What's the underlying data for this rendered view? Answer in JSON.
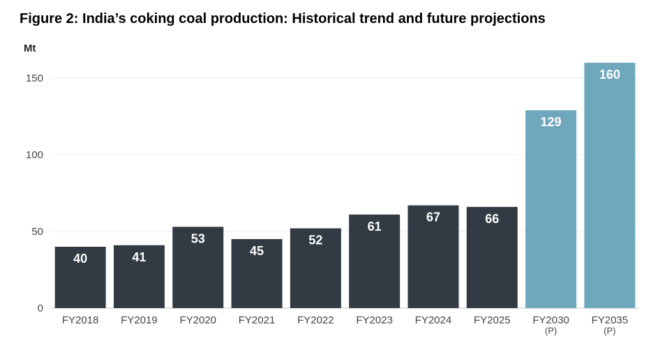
{
  "chart_data": {
    "type": "bar",
    "title": "Figure 2: India’s coking coal production: Historical trend and future projections",
    "ylabel": "Mt",
    "xlabel": "",
    "categories": [
      "FY2018",
      "FY2019",
      "FY2020",
      "FY2021",
      "FY2022",
      "FY2023",
      "FY2024",
      "FY2025",
      "FY2030\n(P)",
      "FY2035\n(P)"
    ],
    "values": [
      40,
      41,
      53,
      45,
      52,
      61,
      67,
      66,
      129,
      160
    ],
    "projected": [
      false,
      false,
      false,
      false,
      false,
      false,
      false,
      false,
      true,
      true
    ],
    "ylim": [
      0,
      160
    ],
    "yticks": [
      0,
      50,
      100,
      150
    ],
    "grid": true,
    "legend": "none",
    "colors": {
      "historical": "#323b43",
      "projected": "#6fa7bd"
    }
  }
}
